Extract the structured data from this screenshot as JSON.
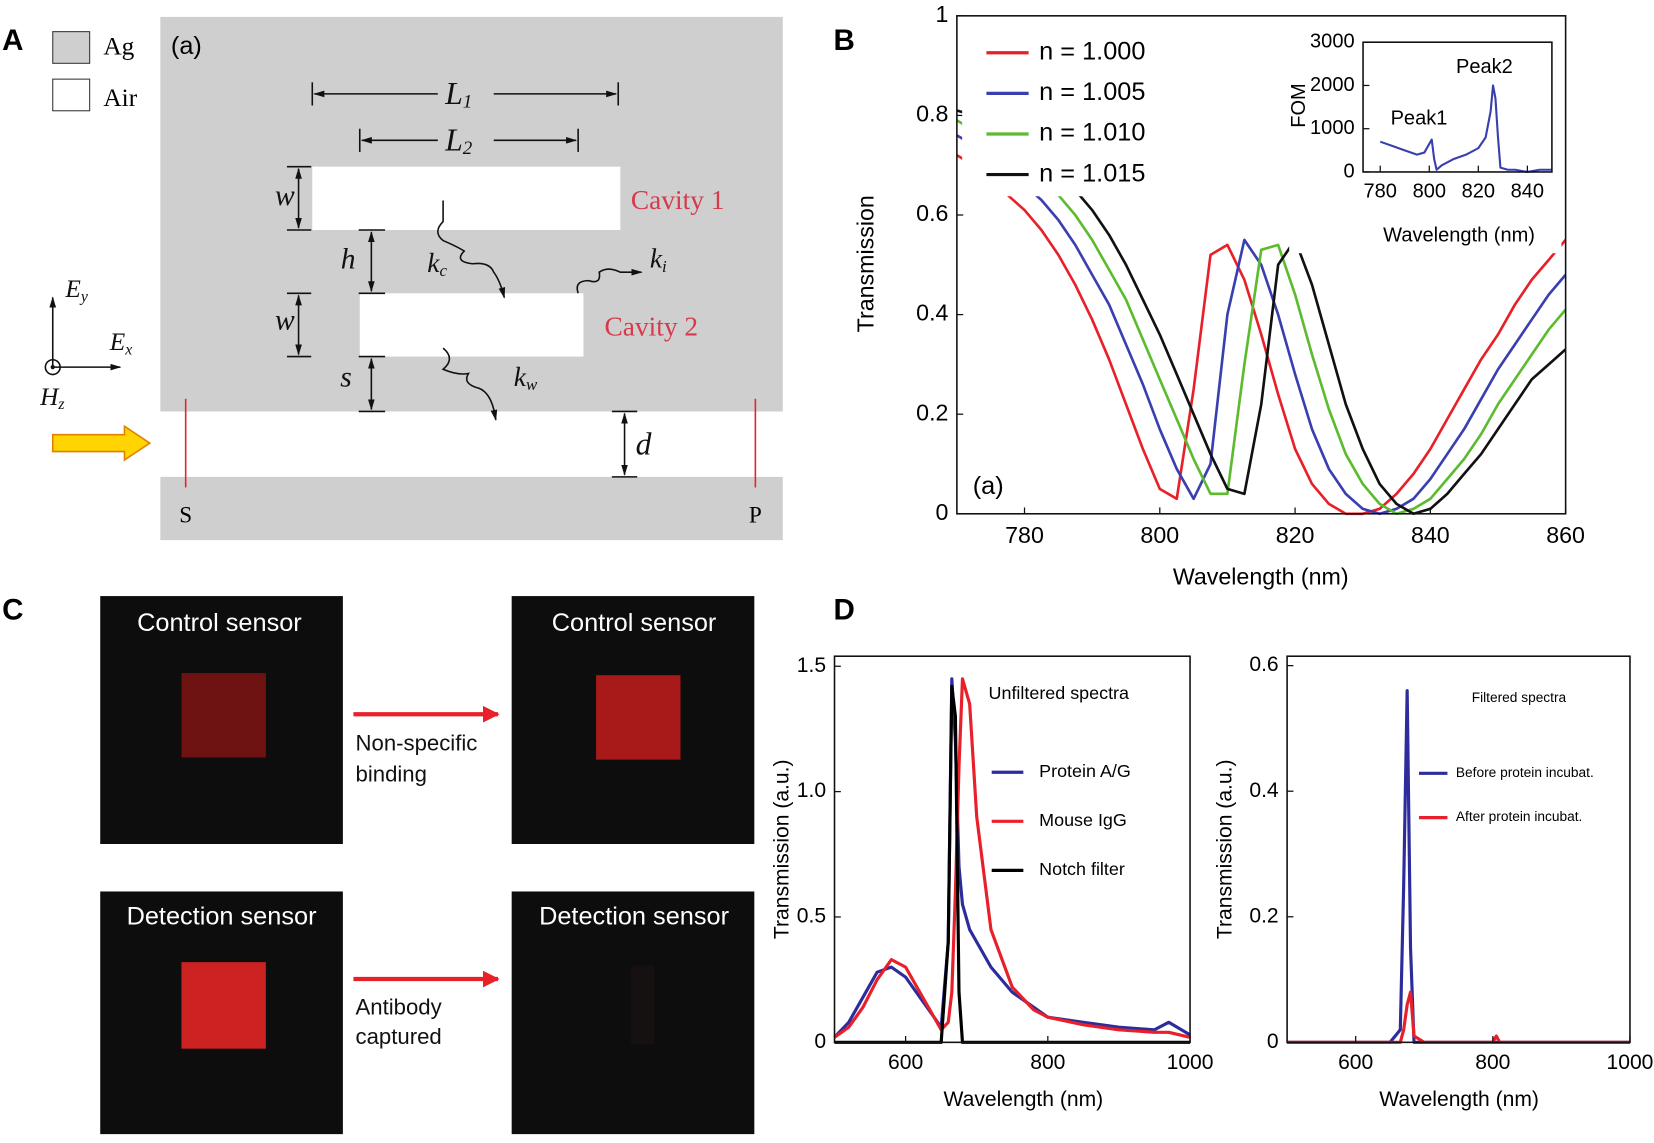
{
  "panel_labels": [
    "A",
    "B",
    "C",
    "D"
  ],
  "diagram": {
    "label": "(a)",
    "legend": [
      "Ag",
      "Air"
    ],
    "L1": {
      "base": "L",
      "sub": "1"
    },
    "L2": {
      "base": "L",
      "sub": "2"
    },
    "w_top": "w",
    "w_bottom": "w",
    "h": "h",
    "s": "s",
    "d": "d",
    "kc": {
      "base": "k",
      "sub": "c"
    },
    "ki": {
      "base": "k",
      "sub": "i"
    },
    "kw": {
      "base": "k",
      "sub": "w"
    },
    "cavities": [
      "Cavity 1",
      "Cavity 2"
    ],
    "Ey": {
      "base": "E",
      "sub": "y"
    },
    "Ex": {
      "base": "E",
      "sub": "x"
    },
    "Hz": {
      "base": "H",
      "sub": "z"
    },
    "ports": [
      "S",
      "P"
    ]
  },
  "images": {
    "sensors": [
      "Control sensor",
      "Control sensor",
      "Detection sensor",
      "Detection sensor"
    ],
    "steps": [
      [
        "Non-specific",
        "binding"
      ],
      [
        "Antibody",
        "captured"
      ]
    ]
  },
  "chart_data": [
    {
      "type": "line",
      "xlabel": "Wavelength (nm)",
      "ylabel": "Transmission",
      "annotations": [
        "(a)"
      ],
      "xlim": [
        770,
        860
      ],
      "ylim": [
        0,
        1
      ],
      "xticks": [
        780,
        800,
        820,
        840,
        860
      ],
      "yticks": [
        0,
        0.2,
        0.4,
        0.6,
        0.8,
        1
      ],
      "x": [
        770,
        772.5,
        775,
        777.5,
        780,
        782.5,
        785,
        787.5,
        790,
        792.5,
        795,
        797.5,
        800,
        802.5,
        805,
        807.5,
        810,
        812.5,
        815,
        817.5,
        820,
        822.5,
        825,
        827.5,
        830,
        832.5,
        835,
        837.5,
        840,
        842.5,
        845,
        847.5,
        850,
        852.5,
        855,
        857.5,
        860
      ],
      "series": [
        {
          "name": "n = 1.000",
          "color": "#e8202a",
          "values": [
            0.72,
            0.7,
            0.67,
            0.64,
            0.61,
            0.57,
            0.52,
            0.46,
            0.39,
            0.31,
            0.22,
            0.13,
            0.05,
            0.03,
            0.25,
            0.52,
            0.54,
            0.47,
            0.36,
            0.24,
            0.13,
            0.06,
            0.02,
            0.0,
            0.0,
            0.01,
            0.04,
            0.08,
            0.13,
            0.19,
            0.25,
            0.31,
            0.36,
            0.42,
            0.47,
            0.51,
            0.55
          ]
        },
        {
          "name": "n = 1.005",
          "color": "#3a3fb0",
          "values": [
            0.76,
            0.74,
            0.72,
            0.69,
            0.66,
            0.63,
            0.59,
            0.54,
            0.48,
            0.42,
            0.34,
            0.26,
            0.17,
            0.09,
            0.03,
            0.1,
            0.4,
            0.55,
            0.5,
            0.4,
            0.28,
            0.17,
            0.09,
            0.04,
            0.01,
            0.0,
            0.01,
            0.03,
            0.07,
            0.12,
            0.17,
            0.23,
            0.29,
            0.34,
            0.39,
            0.44,
            0.48
          ]
        },
        {
          "name": "n = 1.010",
          "color": "#5cbb2e",
          "values": [
            0.79,
            0.77,
            0.75,
            0.73,
            0.7,
            0.67,
            0.64,
            0.6,
            0.55,
            0.49,
            0.43,
            0.35,
            0.27,
            0.19,
            0.11,
            0.04,
            0.04,
            0.3,
            0.53,
            0.54,
            0.44,
            0.32,
            0.21,
            0.12,
            0.06,
            0.02,
            0.0,
            0.01,
            0.03,
            0.07,
            0.11,
            0.16,
            0.22,
            0.27,
            0.32,
            0.37,
            0.41
          ]
        },
        {
          "name": "n = 1.015",
          "color": "#111111",
          "values": [
            0.81,
            0.8,
            0.78,
            0.76,
            0.74,
            0.71,
            0.68,
            0.65,
            0.61,
            0.56,
            0.5,
            0.43,
            0.36,
            0.28,
            0.2,
            0.12,
            0.05,
            0.04,
            0.22,
            0.5,
            0.55,
            0.46,
            0.34,
            0.22,
            0.13,
            0.06,
            0.02,
            0.0,
            0.01,
            0.04,
            0.08,
            0.12,
            0.17,
            0.22,
            0.27,
            0.3,
            0.33
          ]
        }
      ]
    },
    {
      "type": "line",
      "xlabel": "Wavelength (nm)",
      "ylabel": "FOM",
      "annotations": [
        "Peak1",
        "Peak2"
      ],
      "xlim": [
        773,
        850
      ],
      "ylim": [
        0,
        3000
      ],
      "xticks": [
        780,
        800,
        820,
        840
      ],
      "yticks": [
        0,
        1000,
        2000,
        3000
      ],
      "x": [
        780,
        785,
        790,
        795,
        798,
        800,
        801,
        802,
        803,
        805,
        810,
        815,
        820,
        823,
        825,
        826,
        827,
        828,
        829,
        832,
        835,
        840,
        845,
        850
      ],
      "series": [
        {
          "color": "#3a3fb0",
          "values": [
            700,
            600,
            500,
            400,
            450,
            650,
            750,
            300,
            50,
            150,
            300,
            400,
            550,
            800,
            1400,
            2000,
            1700,
            800,
            100,
            50,
            50,
            0,
            50,
            50
          ]
        }
      ]
    },
    {
      "type": "line",
      "xlabel": "Wavelength (nm)",
      "ylabel": "Transmission (a.u.)",
      "annotations": [
        "Unfiltered spectra"
      ],
      "xlim": [
        500,
        1000
      ],
      "ylim": [
        0,
        1.54
      ],
      "xticks": [
        600,
        800,
        1000
      ],
      "yticks": [
        0,
        0.5,
        {
          "value": 1,
          "label": "1.0"
        },
        1.5
      ],
      "x": [
        500,
        520,
        540,
        560,
        580,
        600,
        620,
        640,
        650,
        660,
        665,
        670,
        675,
        680,
        690,
        700,
        720,
        750,
        780,
        800,
        850,
        900,
        950,
        970,
        1000
      ],
      "series": [
        {
          "name": "Protein A/G",
          "color": "#2c2c9c",
          "values": [
            0.02,
            0.08,
            0.18,
            0.28,
            0.3,
            0.26,
            0.18,
            0.1,
            0.06,
            0.4,
            1.45,
            1.2,
            0.7,
            0.55,
            0.45,
            0.4,
            0.3,
            0.2,
            0.14,
            0.1,
            0.08,
            0.06,
            0.05,
            0.08,
            0.03
          ]
        },
        {
          "name": "Mouse IgG",
          "color": "#e8202a",
          "values": [
            0.02,
            0.06,
            0.14,
            0.25,
            0.33,
            0.3,
            0.2,
            0.1,
            0.05,
            0.08,
            0.2,
            0.6,
            1.1,
            1.45,
            1.35,
            0.9,
            0.45,
            0.22,
            0.13,
            0.1,
            0.07,
            0.05,
            0.04,
            0.04,
            0.02
          ]
        },
        {
          "name": "Notch filter",
          "color": "#000000",
          "values": [
            0,
            0,
            0,
            0,
            0,
            0,
            0,
            0,
            0,
            0.4,
            1.42,
            1.3,
            0.2,
            0,
            0,
            0,
            0,
            0,
            0,
            0,
            0,
            0,
            0,
            0,
            0
          ]
        }
      ]
    },
    {
      "type": "line",
      "xlabel": "Wavelength (nm)",
      "ylabel": "Transmission (a.u.)",
      "annotations": [
        "Filtered spectra"
      ],
      "xlim": [
        500,
        1000
      ],
      "ylim": [
        0,
        0.615
      ],
      "xticks": [
        600,
        800,
        1000
      ],
      "yticks": [
        0,
        0.2,
        0.4,
        0.6
      ],
      "x": [
        500,
        600,
        650,
        665,
        670,
        675,
        680,
        685,
        700,
        800,
        805,
        810,
        900,
        1000
      ],
      "series": [
        {
          "name": "Before protein incubat.",
          "color": "#2c2c9c",
          "values": [
            0,
            0,
            0,
            0.02,
            0.25,
            0.56,
            0.15,
            0,
            0,
            0,
            0,
            0,
            0,
            0
          ]
        },
        {
          "name": "After protein incubat.",
          "color": "#e8202a",
          "values": [
            0,
            0,
            0,
            0,
            0.02,
            0.06,
            0.08,
            0.01,
            0,
            0,
            0.01,
            0,
            0,
            0
          ]
        }
      ]
    }
  ]
}
